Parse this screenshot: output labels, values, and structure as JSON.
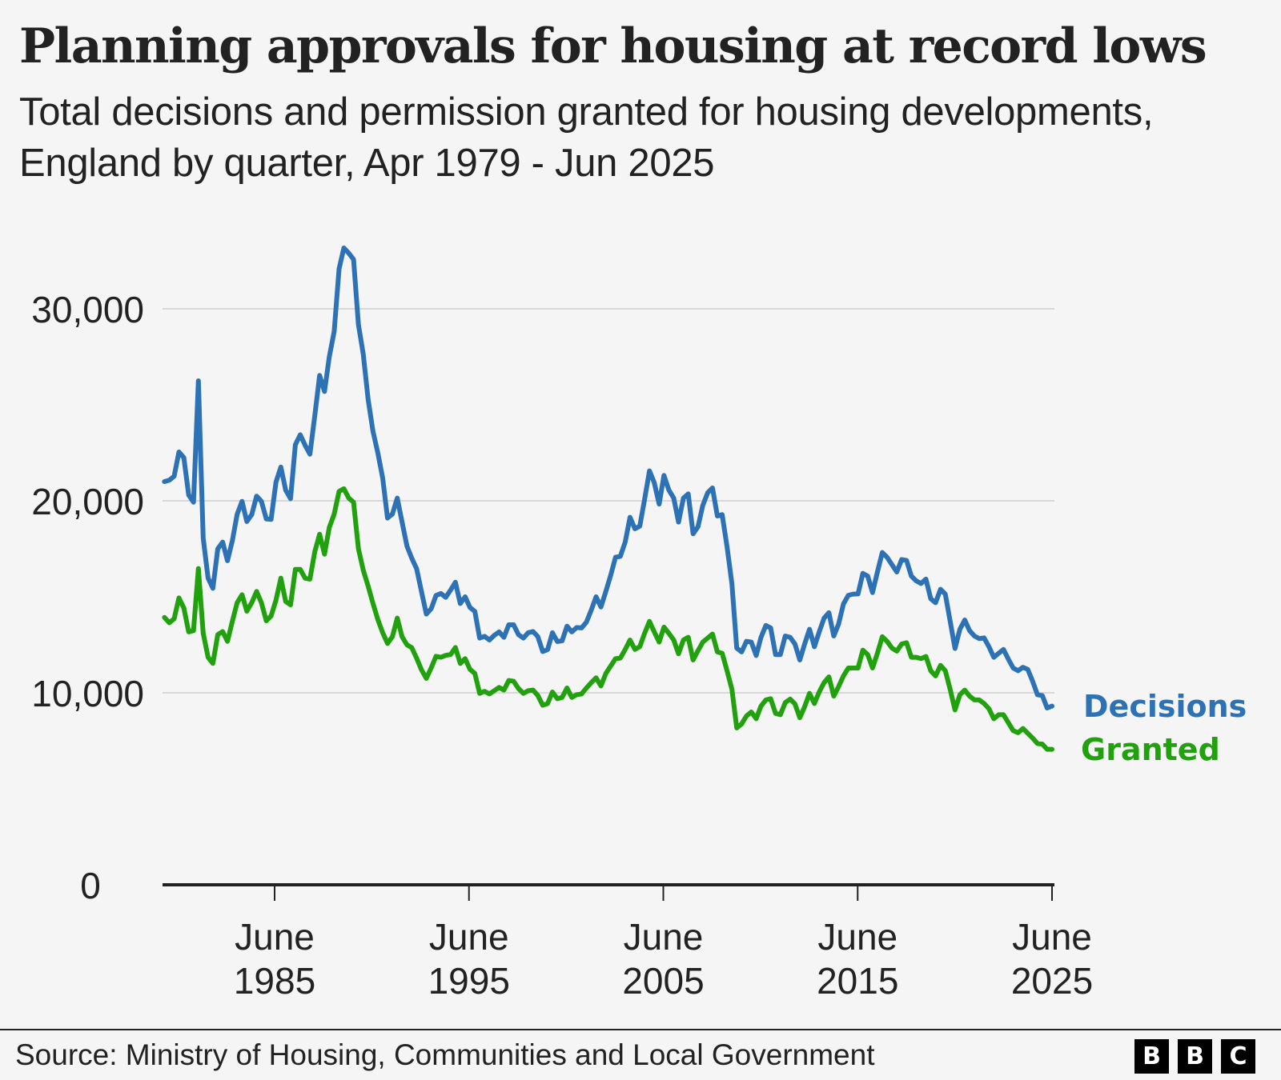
{
  "header": {
    "title": "Planning approvals for housing at record lows",
    "subtitle": "Total decisions and permission granted for housing developments, England by quarter, Apr 1979 - Jun 2025"
  },
  "footer": {
    "source": "Source: Ministry of Housing, Communities and Local Government",
    "logo_letters": [
      "B",
      "B",
      "C"
    ]
  },
  "chart_data": {
    "type": "line",
    "title": "Planning approvals for housing at record lows",
    "subtitle": "Total decisions and permission granted for housing developments, England by quarter, Apr 1979 - Jun 2025",
    "xlabel": "",
    "ylabel": "",
    "x_range": [
      1979.75,
      2025.42
    ],
    "xlim": [
      1979.6,
      2025.42
    ],
    "ylim": [
      0,
      33500
    ],
    "grid": true,
    "legend": "right (inline labels at line ends)",
    "y_ticks": [
      {
        "value": 0,
        "label": "0"
      },
      {
        "value": 10000,
        "label": "10,000"
      },
      {
        "value": 20000,
        "label": "20,000"
      },
      {
        "value": 30000,
        "label": "30,000"
      }
    ],
    "x_ticks": [
      {
        "value": 1985.42,
        "line1": "June",
        "line2": "1985"
      },
      {
        "value": 1995.42,
        "line1": "June",
        "line2": "1995"
      },
      {
        "value": 2005.42,
        "line1": "June",
        "line2": "2005"
      },
      {
        "value": 2015.42,
        "line1": "June",
        "line2": "2015"
      },
      {
        "value": 2025.42,
        "line1": "June",
        "line2": "2025"
      }
    ],
    "series": [
      {
        "name": "Decisions",
        "color": "#2e72b6",
        "values": [
          21000,
          21070,
          21280,
          22540,
          22250,
          20300,
          19930,
          26250,
          18050,
          15970,
          15440,
          17500,
          17850,
          16880,
          17920,
          19300,
          19970,
          18920,
          19280,
          20240,
          19970,
          19060,
          19030,
          20970,
          21760,
          20560,
          20110,
          22920,
          23440,
          22900,
          22430,
          24440,
          26530,
          25690,
          27500,
          28820,
          32080,
          33170,
          32900,
          32570,
          29170,
          27640,
          25280,
          23610,
          22500,
          21180,
          19100,
          19310,
          20140,
          18890,
          17640,
          17010,
          16460,
          15280,
          14100,
          14380,
          15070,
          15170,
          14970,
          15350,
          15760,
          14650,
          15000,
          14440,
          14240,
          12850,
          12940,
          12750,
          12990,
          13170,
          12890,
          13540,
          13540,
          13030,
          12850,
          13130,
          13190,
          12920,
          12150,
          12250,
          13130,
          12670,
          12710,
          13470,
          13170,
          13400,
          13380,
          13680,
          14310,
          15000,
          14470,
          15280,
          16110,
          17060,
          17110,
          17850,
          19140,
          18540,
          18680,
          20070,
          21560,
          20940,
          19830,
          21320,
          20560,
          20140,
          18890,
          20140,
          20360,
          18280,
          18650,
          19760,
          20420,
          20670,
          19210,
          19280,
          17610,
          15670,
          12330,
          12130,
          12680,
          12640,
          11940,
          12890,
          13510,
          13380,
          11990,
          11990,
          12960,
          12890,
          12540,
          11710,
          12540,
          13310,
          12400,
          13170,
          13890,
          14170,
          12960,
          13580,
          14630,
          15080,
          15140,
          15150,
          16220,
          16080,
          15220,
          16290,
          17310,
          17060,
          16670,
          16290,
          16940,
          16890,
          16080,
          15830,
          15690,
          15920,
          14900,
          14690,
          15390,
          15140,
          13720,
          12310,
          13310,
          13790,
          13240,
          12960,
          12820,
          12860,
          12400,
          11850,
          12060,
          12260,
          11750,
          11290,
          11150,
          11330,
          11220,
          10600,
          9900,
          9860,
          9210,
          9310
        ]
      },
      {
        "name": "Granted",
        "color": "#22a10f",
        "values": [
          13930,
          13650,
          13860,
          14940,
          14420,
          13170,
          13240,
          16470,
          13100,
          11850,
          11530,
          13030,
          13190,
          12680,
          13720,
          14690,
          15110,
          14250,
          14690,
          15280,
          14690,
          13750,
          14000,
          14830,
          15970,
          14760,
          14580,
          16430,
          16430,
          15970,
          15920,
          17360,
          18260,
          17220,
          18610,
          19310,
          20490,
          20630,
          20140,
          19930,
          17500,
          16390,
          15560,
          14650,
          13820,
          13130,
          12570,
          12920,
          13890,
          12920,
          12500,
          12350,
          11800,
          11200,
          10750,
          11300,
          11900,
          11850,
          11950,
          11990,
          12360,
          11530,
          11780,
          11220,
          11010,
          9970,
          10080,
          9940,
          10110,
          10280,
          10140,
          10640,
          10600,
          10220,
          9970,
          10110,
          10140,
          9860,
          9350,
          9440,
          10040,
          9690,
          9760,
          10250,
          9760,
          9900,
          9940,
          10250,
          10530,
          10780,
          10360,
          11010,
          11390,
          11780,
          11810,
          12260,
          12750,
          12260,
          12400,
          13100,
          13720,
          13170,
          12640,
          13420,
          13100,
          12750,
          12030,
          12750,
          12890,
          11710,
          12190,
          12640,
          12850,
          13060,
          12130,
          12060,
          11150,
          10180,
          8170,
          8380,
          8790,
          9000,
          8650,
          9310,
          9630,
          9690,
          8930,
          8860,
          9490,
          9670,
          9420,
          8700,
          9280,
          9970,
          9440,
          10040,
          10530,
          10830,
          9830,
          10320,
          10880,
          11290,
          11290,
          11290,
          12220,
          11990,
          11290,
          12060,
          12920,
          12680,
          12330,
          12170,
          12540,
          12610,
          11850,
          11850,
          11780,
          11890,
          11150,
          10880,
          11430,
          11150,
          10180,
          9110,
          9900,
          10140,
          9830,
          9630,
          9630,
          9440,
          9170,
          8650,
          8860,
          8860,
          8440,
          8030,
          7920,
          8140,
          7890,
          7640,
          7360,
          7330,
          7060,
          7060
        ]
      }
    ]
  }
}
